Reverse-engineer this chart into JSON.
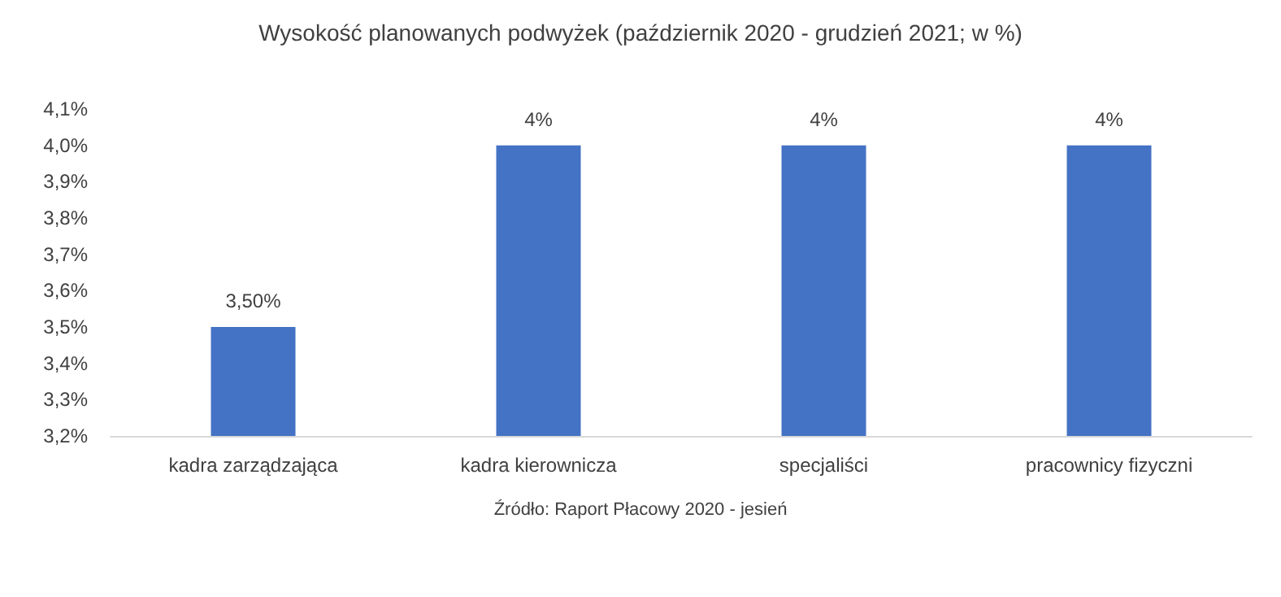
{
  "chart_data": {
    "type": "bar",
    "title": "Wysokość planowanych podwyżek (październik 2020 - grudzień 2021; w %)",
    "categories": [
      "kadra zarządzająca",
      "kadra kierownicza",
      "specjaliści",
      "pracownicy fizyczni"
    ],
    "values": [
      3.5,
      4.0,
      4.0,
      4.0
    ],
    "value_labels": [
      "3,50%",
      "4%",
      "4%",
      "4%"
    ],
    "color": "#4472c4",
    "ylim": [
      3.2,
      4.1
    ],
    "yticks": [
      {
        "value": 3.2,
        "label": "3,2%"
      },
      {
        "value": 3.3,
        "label": "3,3%"
      },
      {
        "value": 3.4,
        "label": "3,4%"
      },
      {
        "value": 3.5,
        "label": "3,5%"
      },
      {
        "value": 3.6,
        "label": "3,6%"
      },
      {
        "value": 3.7,
        "label": "3,7%"
      },
      {
        "value": 3.8,
        "label": "3,8%"
      },
      {
        "value": 3.9,
        "label": "3,9%"
      },
      {
        "value": 4.0,
        "label": "4,0%"
      },
      {
        "value": 4.1,
        "label": "4,1%"
      }
    ],
    "annotations": [
      "Źródło: Raport Płacowy 2020 - jesień"
    ]
  }
}
